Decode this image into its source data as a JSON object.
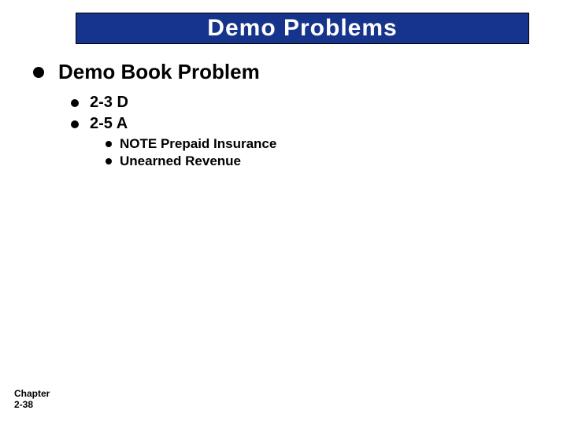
{
  "title": "Demo Problems",
  "colors": {
    "title_bg": "#16348c",
    "title_fg": "#ffffff",
    "text": "#000000",
    "bullet": "#000000",
    "page_bg": "#ffffff"
  },
  "typography": {
    "title_font": "Comic Sans MS",
    "title_fontsize": 30,
    "body_font": "Arial",
    "lvl1_fontsize": 26,
    "lvl2_fontsize": 20,
    "lvl3_fontsize": 17,
    "footer_fontsize": 12,
    "bold": true
  },
  "bullets": {
    "lvl1": {
      "text": "Demo Book Problem"
    },
    "lvl2": [
      {
        "text": "2-3 D"
      },
      {
        "text": "2-5 A"
      }
    ],
    "lvl3": [
      {
        "text": "NOTE Prepaid Insurance"
      },
      {
        "text": "Unearned Revenue"
      }
    ]
  },
  "footer": {
    "line1": "Chapter",
    "line2": "2-38"
  }
}
